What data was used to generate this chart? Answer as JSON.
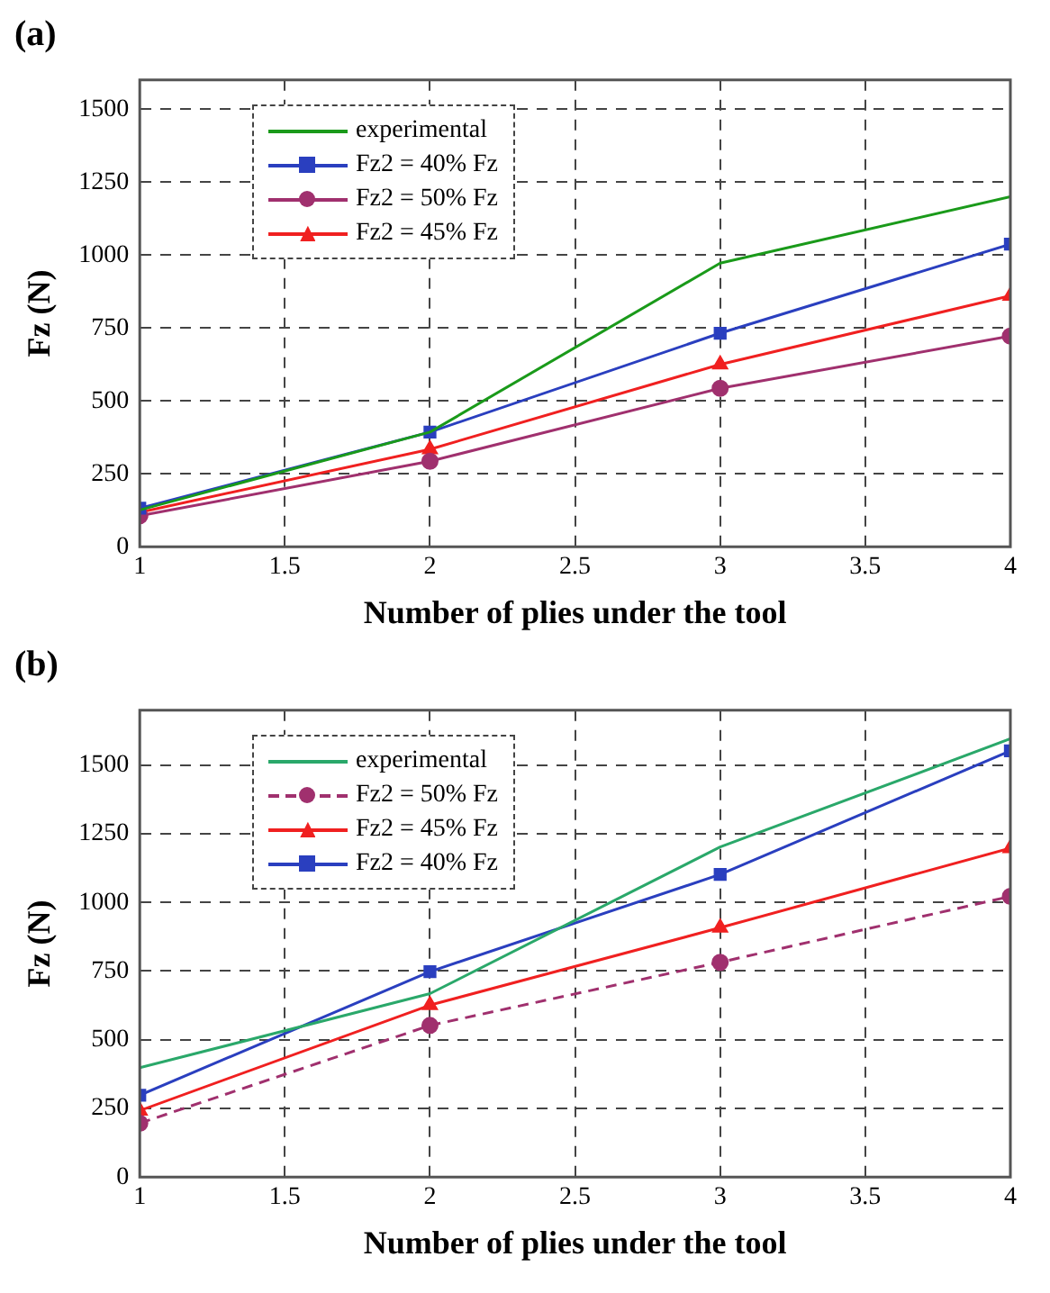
{
  "chart_data": [
    {
      "type": "line",
      "title": "(a)",
      "xlabel": "Number of plies under the tool",
      "ylabel": "Fz (N)",
      "x": [
        1,
        2,
        3,
        4
      ],
      "xlim": [
        1,
        4
      ],
      "xticks": [
        1,
        1.5,
        2,
        2.5,
        3,
        3.5,
        4
      ],
      "ylim": [
        0,
        1600
      ],
      "yticks": [
        0,
        250,
        500,
        750,
        1000,
        1250,
        1500
      ],
      "grid": true,
      "legend": "top left",
      "series": [
        {
          "name": "experimental",
          "color": "#1a9a1a",
          "marker": "none",
          "values": [
            126,
            393,
            972,
            1200
          ]
        },
        {
          "name": "Fz2 = 40%  Fz",
          "color": "#2a3fbf",
          "marker": "square",
          "values": [
            132,
            393,
            732,
            1037
          ]
        },
        {
          "name": "Fz2 = 50%  Fz",
          "color": "#a0306e",
          "marker": "circle",
          "values": [
            106,
            293,
            543,
            722
          ]
        },
        {
          "name": "Fz2 = 45%  Fz",
          "color": "#f02020",
          "marker": "triangle",
          "values": [
            118,
            334,
            625,
            860
          ]
        }
      ]
    },
    {
      "type": "line",
      "title": "(b)",
      "xlabel": "Number of plies under the tool",
      "ylabel": "Fz (N)",
      "x": [
        1,
        2,
        3,
        4
      ],
      "xlim": [
        1,
        4
      ],
      "xticks": [
        1,
        1.5,
        2,
        2.5,
        3,
        3.5,
        4
      ],
      "ylim": [
        0,
        1700
      ],
      "yticks": [
        0,
        250,
        500,
        750,
        1000,
        1250,
        1500
      ],
      "grid": true,
      "legend": "top left",
      "series": [
        {
          "name": "experimental",
          "color": "#2aa86a",
          "marker": "none",
          "values": [
            398,
            668,
            1202,
            1596
          ]
        },
        {
          "name": "Fz2 = 50%  Fz",
          "color": "#a0306e",
          "marker": "circle",
          "line_style": "dashed",
          "values": [
            196,
            552,
            782,
            1022
          ]
        },
        {
          "name": "Fz2 = 45%  Fz",
          "color": "#f02020",
          "marker": "triangle",
          "values": [
            242,
            626,
            908,
            1198
          ]
        },
        {
          "name": "Fz2 = 40%  Fz",
          "color": "#2a3fbf",
          "marker": "square",
          "values": [
            298,
            748,
            1102,
            1552
          ]
        }
      ]
    }
  ]
}
